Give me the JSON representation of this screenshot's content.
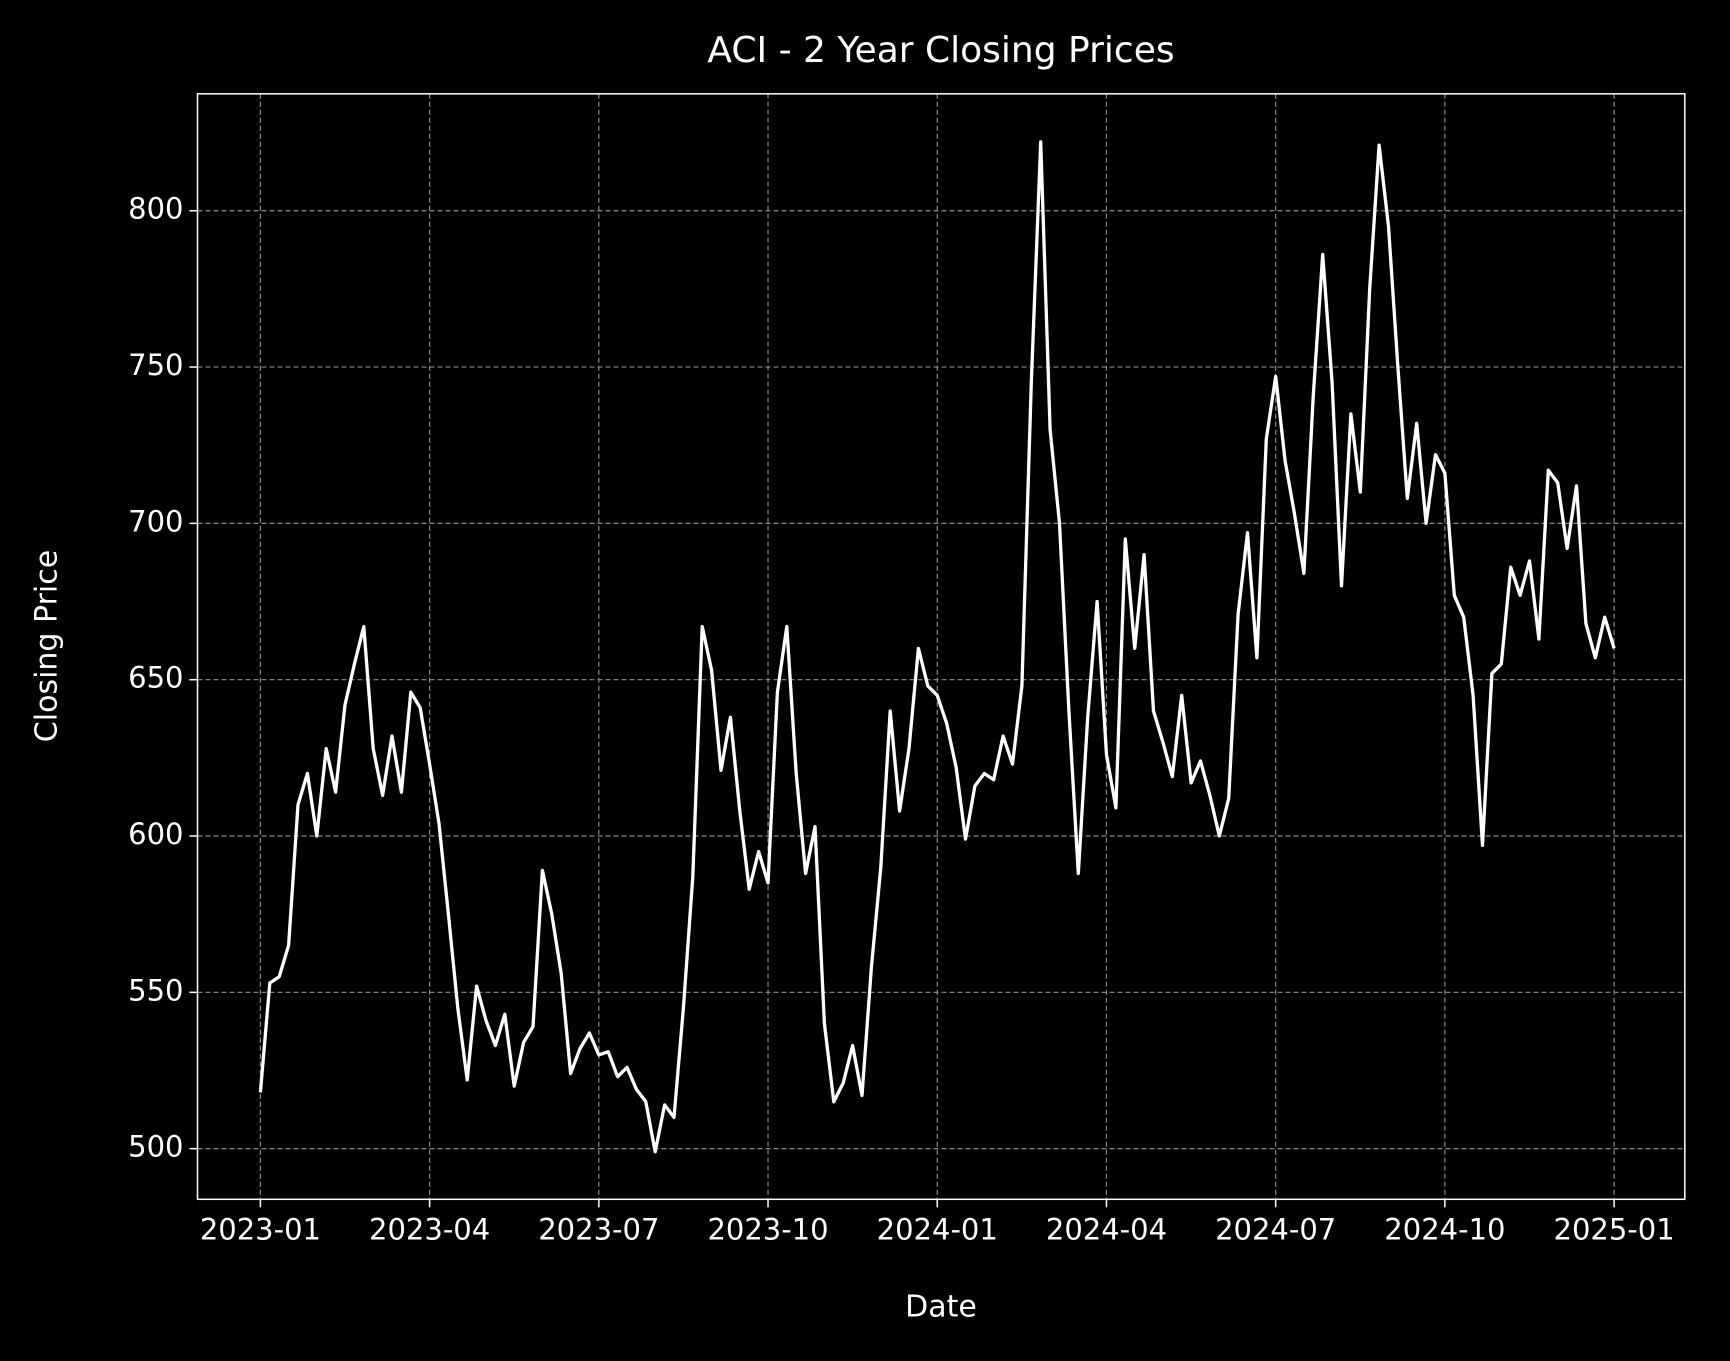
{
  "chart_data": {
    "type": "line",
    "title": "ACI - 2 Year Closing Prices",
    "x_label": "Date",
    "y_label": "Closing Price",
    "x": [
      "2023-01",
      "2023-01",
      "2023-01",
      "2023-01",
      "2023-01",
      "2023-01",
      "2023-02",
      "2023-02",
      "2023-02",
      "2023-02",
      "2023-02",
      "2023-02",
      "2023-03",
      "2023-03",
      "2023-03",
      "2023-03",
      "2023-03",
      "2023-03",
      "2023-04",
      "2023-04",
      "2023-04",
      "2023-04",
      "2023-04",
      "2023-04",
      "2023-05",
      "2023-05",
      "2023-05",
      "2023-05",
      "2023-05",
      "2023-05",
      "2023-06",
      "2023-06",
      "2023-06",
      "2023-06",
      "2023-06",
      "2023-06",
      "2023-07",
      "2023-07",
      "2023-07",
      "2023-07",
      "2023-07",
      "2023-07",
      "2023-08",
      "2023-08",
      "2023-08",
      "2023-08",
      "2023-08",
      "2023-08",
      "2023-09",
      "2023-09",
      "2023-09",
      "2023-09",
      "2023-09",
      "2023-09",
      "2023-10",
      "2023-10",
      "2023-10",
      "2023-10",
      "2023-10",
      "2023-10",
      "2023-11",
      "2023-11",
      "2023-11",
      "2023-11",
      "2023-11",
      "2023-11",
      "2023-12",
      "2023-12",
      "2023-12",
      "2023-12",
      "2023-12",
      "2023-12",
      "2024-01",
      "2024-01",
      "2024-01",
      "2024-01",
      "2024-01",
      "2024-01",
      "2024-02",
      "2024-02",
      "2024-02",
      "2024-02",
      "2024-02",
      "2024-02",
      "2024-03",
      "2024-03",
      "2024-03",
      "2024-03",
      "2024-03",
      "2024-03",
      "2024-04",
      "2024-04",
      "2024-04",
      "2024-04",
      "2024-04",
      "2024-04",
      "2024-05",
      "2024-05",
      "2024-05",
      "2024-05",
      "2024-05",
      "2024-05",
      "2024-06",
      "2024-06",
      "2024-06",
      "2024-06",
      "2024-06",
      "2024-06",
      "2024-07",
      "2024-07",
      "2024-07",
      "2024-07",
      "2024-07",
      "2024-07",
      "2024-08",
      "2024-08",
      "2024-08",
      "2024-08",
      "2024-08",
      "2024-08",
      "2024-09",
      "2024-09",
      "2024-09",
      "2024-09",
      "2024-09",
      "2024-09",
      "2024-10",
      "2024-10",
      "2024-10",
      "2024-10",
      "2024-10",
      "2024-10",
      "2024-11",
      "2024-11",
      "2024-11",
      "2024-11",
      "2024-11",
      "2024-11",
      "2024-12",
      "2024-12",
      "2024-12",
      "2024-12",
      "2024-12",
      "2024-12",
      "2025-01"
    ],
    "values": [
      518,
      553,
      555,
      565,
      610,
      620,
      600,
      628,
      614,
      642,
      655,
      667,
      628,
      613,
      632,
      614,
      646,
      641,
      623,
      604,
      575,
      545,
      522,
      552,
      541,
      533,
      543,
      520,
      534,
      539,
      589,
      575,
      556,
      524,
      532,
      537,
      530,
      531,
      523,
      526,
      519,
      515,
      499,
      514,
      510,
      545,
      587,
      667,
      653,
      621,
      638,
      608,
      583,
      595,
      585,
      646,
      667,
      620,
      588,
      603,
      540,
      515,
      521,
      533,
      517,
      558,
      590,
      640,
      608,
      628,
      660,
      648,
      645,
      636,
      622,
      599,
      616,
      620,
      618,
      632,
      623,
      648,
      745,
      822,
      730,
      700,
      640,
      588,
      638,
      675,
      626,
      609,
      695,
      660,
      690,
      640,
      630,
      619,
      645,
      617,
      624,
      613,
      600,
      612,
      671,
      697,
      657,
      727,
      747,
      720,
      703,
      684,
      741,
      786,
      745,
      680,
      735,
      710,
      775,
      821,
      795,
      750,
      708,
      732,
      700,
      722,
      716,
      677,
      670,
      645,
      597,
      652,
      655,
      686,
      677,
      688,
      663,
      717,
      713,
      692,
      712,
      668,
      657,
      670,
      660
    ],
    "color": "#ffffff",
    "xticks": [
      "2023-01",
      "2023-04",
      "2023-07",
      "2023-10",
      "2024-01",
      "2024-04",
      "2024-07",
      "2024-10",
      "2025-01"
    ],
    "ylim": [
      483.8,
      837.4
    ],
    "yticks": [
      500,
      550,
      600,
      650,
      700,
      750,
      800
    ],
    "grid": true
  }
}
